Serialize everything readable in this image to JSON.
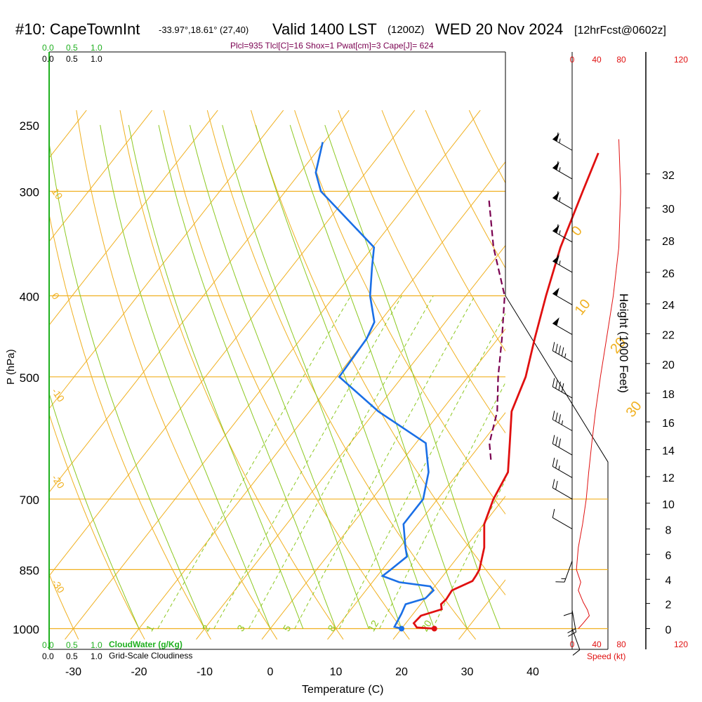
{
  "header": {
    "station": "#10: CapeTownInt",
    "coords": "-33.97°,18.61° (27,40)",
    "valid": "Valid 1400 LST",
    "utc": "(1200Z)",
    "date": "WED 20 Nov 2024",
    "forecast": "[12hrFcst@0602z]",
    "indices": "Plcl=935 Tlcl[C]=16 Shox=1 Pwat[cm]=3 Cape[J]= 624"
  },
  "axes": {
    "x_label": "Temperature (C)",
    "y_label": "P (hPa)",
    "height_label": "Height (1000 Feet)",
    "speed_label": "Speed (kt)",
    "cloud_water_label": "CloudWater (g/Kg)",
    "cloudiness_label": "Grid-Scale Cloudiness"
  },
  "colors": {
    "temperature": "#e01010",
    "dewpoint": "#1a6fe6",
    "parcel": "#7a0050",
    "isotherm": "#f0b020",
    "dry_adiabat": "#f0b020",
    "moist_adiabat": "#8cc820",
    "mixing_ratio": "#8cc820",
    "cloud_axis": "#20b020",
    "wind_speed": "#e01010",
    "frame": "#000000"
  },
  "chart_data": {
    "type": "line",
    "skew_t": true,
    "temperature_ticks": [
      -30,
      -20,
      -10,
      0,
      10,
      20,
      30,
      40
    ],
    "temperature_range": [
      -34,
      44
    ],
    "pressure_ticks": [
      250,
      300,
      400,
      500,
      700,
      850,
      1000
    ],
    "pressure_range": [
      1030,
      250
    ],
    "isobar_lines": [
      300,
      400,
      500,
      700,
      850,
      1000
    ],
    "isotherm_labels": [
      {
        "t": 0,
        "p": 340,
        "text": "0"
      },
      {
        "t": 10,
        "p": 423,
        "text": "10"
      },
      {
        "t": 20,
        "p": 470,
        "text": "20"
      },
      {
        "t": 30,
        "p": 560,
        "text": "30"
      }
    ],
    "dry_adiabat_labels": [
      {
        "p": 300,
        "text": "10"
      },
      {
        "p": 400,
        "text": "0"
      },
      {
        "p": 520,
        "text": "-10"
      },
      {
        "p": 660,
        "text": "-20"
      },
      {
        "p": 880,
        "text": "-30"
      }
    ],
    "mixing_ratio_labels": [
      "1",
      "2",
      "3",
      "5",
      "8",
      "12",
      "20"
    ],
    "temperature_profile": [
      {
        "p": 1000,
        "t": 25.0
      },
      {
        "p": 997,
        "t": 22.2
      },
      {
        "p": 985,
        "t": 21.2
      },
      {
        "p": 965,
        "t": 21.4
      },
      {
        "p": 948,
        "t": 23.8
      },
      {
        "p": 935,
        "t": 23.1
      },
      {
        "p": 922,
        "t": 23.3
      },
      {
        "p": 900,
        "t": 23.1
      },
      {
        "p": 877,
        "t": 25.1
      },
      {
        "p": 864,
        "t": 25.0
      },
      {
        "p": 850,
        "t": 24.8
      },
      {
        "p": 800,
        "t": 22.9
      },
      {
        "p": 750,
        "t": 20.1
      },
      {
        "p": 700,
        "t": 18.5
      },
      {
        "p": 650,
        "t": 17.5
      },
      {
        "p": 600,
        "t": 14.3
      },
      {
        "p": 550,
        "t": 10.8
      },
      {
        "p": 500,
        "t": 8.8
      },
      {
        "p": 450,
        "t": 5.6
      },
      {
        "p": 400,
        "t": 2.2
      },
      {
        "p": 350,
        "t": -1.4
      },
      {
        "p": 300,
        "t": -4.7
      },
      {
        "p": 270,
        "t": -6.9
      }
    ],
    "dewpoint_profile": [
      {
        "p": 1000,
        "t": 20.0
      },
      {
        "p": 995,
        "t": 18.7
      },
      {
        "p": 960,
        "t": 18.2
      },
      {
        "p": 935,
        "t": 17.7
      },
      {
        "p": 920,
        "t": 20.0
      },
      {
        "p": 900,
        "t": 20.3
      },
      {
        "p": 890,
        "t": 19.3
      },
      {
        "p": 880,
        "t": 14.1
      },
      {
        "p": 865,
        "t": 10.8
      },
      {
        "p": 850,
        "t": 11.3
      },
      {
        "p": 820,
        "t": 12.2
      },
      {
        "p": 800,
        "t": 10.9
      },
      {
        "p": 750,
        "t": 7.8
      },
      {
        "p": 700,
        "t": 7.8
      },
      {
        "p": 650,
        "t": 5.4
      },
      {
        "p": 600,
        "t": 1.5
      },
      {
        "p": 550,
        "t": -9.5
      },
      {
        "p": 500,
        "t": -19.6
      },
      {
        "p": 450,
        "t": -20.0
      },
      {
        "p": 430,
        "t": -20.8
      },
      {
        "p": 400,
        "t": -24.6
      },
      {
        "p": 370,
        "t": -27.7
      },
      {
        "p": 350,
        "t": -29.8
      },
      {
        "p": 300,
        "t": -44.6
      },
      {
        "p": 285,
        "t": -47.6
      },
      {
        "p": 262,
        "t": -50.2
      }
    ],
    "parcel_profile": [
      {
        "p": 628,
        "t": 13.4
      },
      {
        "p": 600,
        "t": 11.2
      },
      {
        "p": 550,
        "t": 8.6
      },
      {
        "p": 500,
        "t": 4.6
      },
      {
        "p": 450,
        "t": 0.6
      },
      {
        "p": 400,
        "t": -4.1
      },
      {
        "p": 350,
        "t": -11.6
      },
      {
        "p": 305,
        "t": -18.3
      }
    ],
    "surface_temperature": {
      "p": 1000,
      "t": 25.0
    },
    "surface_dewpoint": {
      "p": 1000,
      "t": 20.0
    },
    "height_axis": {
      "ticks": [
        0,
        2,
        4,
        6,
        8,
        10,
        12,
        14,
        16,
        18,
        20,
        22,
        24,
        26,
        28,
        30,
        32
      ],
      "label_pressures": [
        1000,
        933,
        873,
        815,
        760,
        708,
        658,
        611,
        566,
        523,
        482,
        444,
        409,
        375,
        343,
        314,
        286
      ]
    },
    "speed_axis": {
      "ticks": [
        0,
        40,
        80,
        120
      ],
      "range": [
        0,
        120
      ]
    },
    "wind_speed_profile": [
      {
        "p": 1000,
        "s": 10
      },
      {
        "p": 985,
        "s": 18
      },
      {
        "p": 965,
        "s": 28
      },
      {
        "p": 950,
        "s": 25
      },
      {
        "p": 930,
        "s": 18
      },
      {
        "p": 900,
        "s": 10
      },
      {
        "p": 880,
        "s": 14
      },
      {
        "p": 850,
        "s": 7
      },
      {
        "p": 800,
        "s": 10
      },
      {
        "p": 750,
        "s": 17
      },
      {
        "p": 700,
        "s": 23
      },
      {
        "p": 650,
        "s": 27
      },
      {
        "p": 600,
        "s": 32
      },
      {
        "p": 550,
        "s": 38
      },
      {
        "p": 500,
        "s": 46
      },
      {
        "p": 450,
        "s": 56
      },
      {
        "p": 400,
        "s": 67
      },
      {
        "p": 350,
        "s": 76
      },
      {
        "p": 300,
        "s": 79
      },
      {
        "p": 260,
        "s": 76
      }
    ],
    "wind_barbs": [
      {
        "p": 268,
        "dir": 300,
        "spd": 65
      },
      {
        "p": 290,
        "dir": 300,
        "spd": 65
      },
      {
        "p": 315,
        "dir": 300,
        "spd": 65
      },
      {
        "p": 345,
        "dir": 300,
        "spd": 65
      },
      {
        "p": 375,
        "dir": 300,
        "spd": 65
      },
      {
        "p": 410,
        "dir": 300,
        "spd": 55
      },
      {
        "p": 445,
        "dir": 300,
        "spd": 50
      },
      {
        "p": 480,
        "dir": 300,
        "spd": 45
      },
      {
        "p": 530,
        "dir": 300,
        "spd": 40
      },
      {
        "p": 580,
        "dir": 300,
        "spd": 35
      },
      {
        "p": 620,
        "dir": 300,
        "spd": 30
      },
      {
        "p": 660,
        "dir": 300,
        "spd": 25
      },
      {
        "p": 700,
        "dir": 300,
        "spd": 20
      },
      {
        "p": 760,
        "dir": 300,
        "spd": 10
      },
      {
        "p": 830,
        "dir": 200,
        "spd": 15
      },
      {
        "p": 900,
        "dir": 180,
        "spd": 10
      },
      {
        "p": 950,
        "dir": 170,
        "spd": 20
      },
      {
        "p": 1000,
        "dir": 160,
        "spd": 10
      }
    ],
    "cloud_water_ticks": [
      "0.0",
      "0.5",
      "1.0"
    ],
    "cloudiness_ticks": [
      "0.0",
      "0.5",
      "1.0"
    ]
  }
}
